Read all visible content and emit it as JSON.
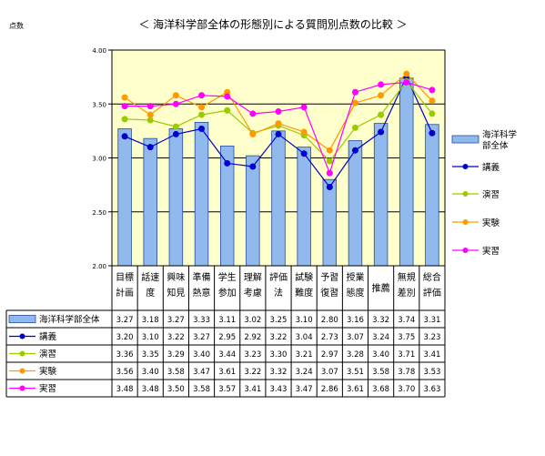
{
  "chart_data": {
    "type": "bar",
    "title": "＜ 海洋科学部全体の形態別による質問別点数の比較 ＞",
    "ylabel": "点数",
    "ylim": [
      2.0,
      4.0
    ],
    "yticks": [
      "2.00",
      "2.50",
      "3.00",
      "3.50",
      "4.00"
    ],
    "grid": true,
    "legend_position": "right",
    "categories": [
      [
        "目標",
        "計画"
      ],
      [
        "話速",
        "度"
      ],
      [
        "興味",
        "知見"
      ],
      [
        "準備",
        "熱意"
      ],
      [
        "学生",
        "参加"
      ],
      [
        "理解",
        "考慮"
      ],
      [
        "評価",
        "法"
      ],
      [
        "試験",
        "難度"
      ],
      [
        "予習",
        "復習"
      ],
      [
        "授業",
        "態度"
      ],
      [
        "推薦"
      ],
      [
        "無規",
        "差別"
      ],
      [
        "総合",
        "評価"
      ]
    ],
    "series": [
      {
        "name": "海洋科学部全体",
        "kind": "bar",
        "color": "#92b9ee",
        "values": [
          3.27,
          3.18,
          3.27,
          3.33,
          3.11,
          3.02,
          3.25,
          3.1,
          2.8,
          3.16,
          3.32,
          3.74,
          3.31
        ]
      },
      {
        "name": "講義",
        "kind": "line",
        "color": "#0000cc",
        "values": [
          3.2,
          3.1,
          3.22,
          3.27,
          2.95,
          2.92,
          3.22,
          3.04,
          2.73,
          3.07,
          3.24,
          3.75,
          3.23
        ]
      },
      {
        "name": "演習",
        "kind": "line",
        "color": "#99cc00",
        "values": [
          3.36,
          3.35,
          3.29,
          3.4,
          3.44,
          3.23,
          3.3,
          3.21,
          2.97,
          3.28,
          3.4,
          3.71,
          3.41
        ]
      },
      {
        "name": "実験",
        "kind": "line",
        "color": "#ff9900",
        "values": [
          3.56,
          3.4,
          3.58,
          3.47,
          3.61,
          3.22,
          3.32,
          3.24,
          3.07,
          3.51,
          3.58,
          3.78,
          3.53
        ]
      },
      {
        "name": "実習",
        "kind": "line",
        "color": "#ff00ff",
        "values": [
          3.48,
          3.48,
          3.5,
          3.58,
          3.57,
          3.41,
          3.43,
          3.47,
          2.86,
          3.61,
          3.68,
          3.7,
          3.63
        ]
      }
    ],
    "table_values": [
      [
        "3.27",
        "3.18",
        "3.27",
        "3.33",
        "3.11",
        "3.02",
        "3.25",
        "3.10",
        "2.80",
        "3.16",
        "3.32",
        "3.74",
        "3.31"
      ],
      [
        "3.20",
        "3.10",
        "3.22",
        "3.27",
        "2.95",
        "2.92",
        "3.22",
        "3.04",
        "2.73",
        "3.07",
        "3.24",
        "3.75",
        "3.23"
      ],
      [
        "3.36",
        "3.35",
        "3.29",
        "3.40",
        "3.44",
        "3.23",
        "3.30",
        "3.21",
        "2.97",
        "3.28",
        "3.40",
        "3.71",
        "3.41"
      ],
      [
        "3.56",
        "3.40",
        "3.58",
        "3.47",
        "3.61",
        "3.22",
        "3.32",
        "3.24",
        "3.07",
        "3.51",
        "3.58",
        "3.78",
        "3.53"
      ],
      [
        "3.48",
        "3.48",
        "3.50",
        "3.58",
        "3.57",
        "3.41",
        "3.43",
        "3.47",
        "2.86",
        "3.61",
        "3.68",
        "3.70",
        "3.63"
      ]
    ],
    "legend_labels": [
      [
        "海洋科学",
        "部全体"
      ],
      [
        "講義"
      ],
      [
        "演習"
      ],
      [
        "実験"
      ],
      [
        "実習"
      ]
    ],
    "colors": {
      "plot_bg": "#ffffcc",
      "grid": "#000000",
      "bar_edge": "#1f4e99"
    }
  }
}
